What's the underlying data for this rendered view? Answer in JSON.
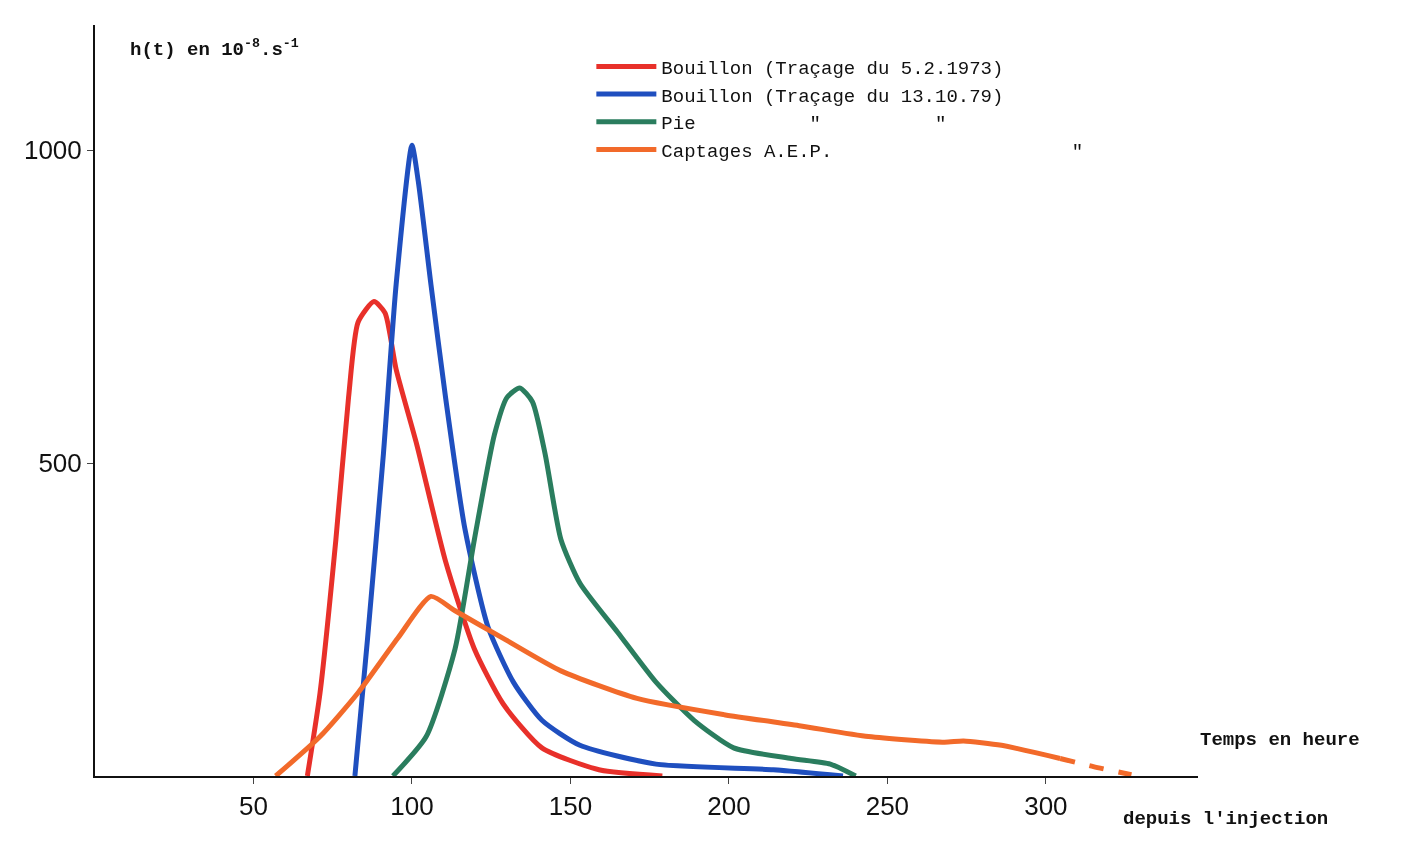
{
  "chart_data": {
    "type": "line",
    "ylabel": "h(t) en 10$^{-8}$.s$^{-1}$",
    "xlabel": "Temps en heure",
    "annotations": [
      "depuis l'injection"
    ],
    "xlim": [
      0,
      348
    ],
    "xticks": [
      50,
      100,
      150,
      200,
      250,
      300
    ],
    "ylim": [
      0,
      1200
    ],
    "yticks": [
      500,
      1000
    ],
    "legend": "top",
    "line_style": "solid",
    "marker": "none",
    "series": [
      {
        "name": "Bouillon (Traçage du 5.2.1973)",
        "color": "#e8302a",
        "x": [
          67,
          71,
          76,
          80,
          83,
          88,
          91.5,
          95,
          101.5,
          110.6,
          119.7,
          128.8,
          141,
          159,
          179
        ],
        "values": [
          0,
          133,
          378,
          605,
          725,
          758,
          740,
          650,
          530,
          343,
          203,
          115,
          45,
          10,
          0
        ]
      },
      {
        "name": "Bouillon (Traçage du 13.10.79)",
        "color": "#1f4fbf",
        "x": [
          82,
          86,
          91,
          95,
          100,
          102,
          106,
          110.6,
          116.7,
          124,
          132,
          141,
          153,
          177,
          214,
          236
        ],
        "values": [
          0,
          220,
          515,
          785,
          1008,
          950,
          785,
          605,
          395,
          238,
          150,
          89,
          49,
          19,
          10,
          0
        ]
      },
      {
        "name": "Pie          \"          \"",
        "color": "#2a7d5e",
        "x": [
          94,
          104.5,
          113.6,
          119.7,
          126,
          130,
          134,
          138,
          142,
          147,
          153,
          165,
          177,
          189,
          201.5,
          219.7,
          232,
          240
        ],
        "values": [
          0,
          63,
          203,
          378,
          545,
          605,
          620,
          598,
          515,
          378,
          308,
          229,
          150,
          89,
          45,
          28,
          19,
          0
        ]
      },
      {
        "name": "Captages A.E.P.                     \"",
        "color": "#f26a2a",
        "x": [
          57,
          71,
          83,
          95.5,
          106,
          113.6,
          128.8,
          147,
          171,
          198.5,
          222.7,
          244,
          268,
          274,
          286,
          304.5
        ],
        "values": [
          0,
          63,
          133,
          220,
          287,
          264,
          220,
          168,
          124,
          98,
          80,
          63,
          54,
          56,
          49,
          28
        ]
      },
      {
        "color": "#f26a2a",
        "line_style": "dashed",
        "x": [
          304.5,
          315,
          327
        ],
        "values": [
          28,
          15,
          2
        ]
      }
    ]
  }
}
